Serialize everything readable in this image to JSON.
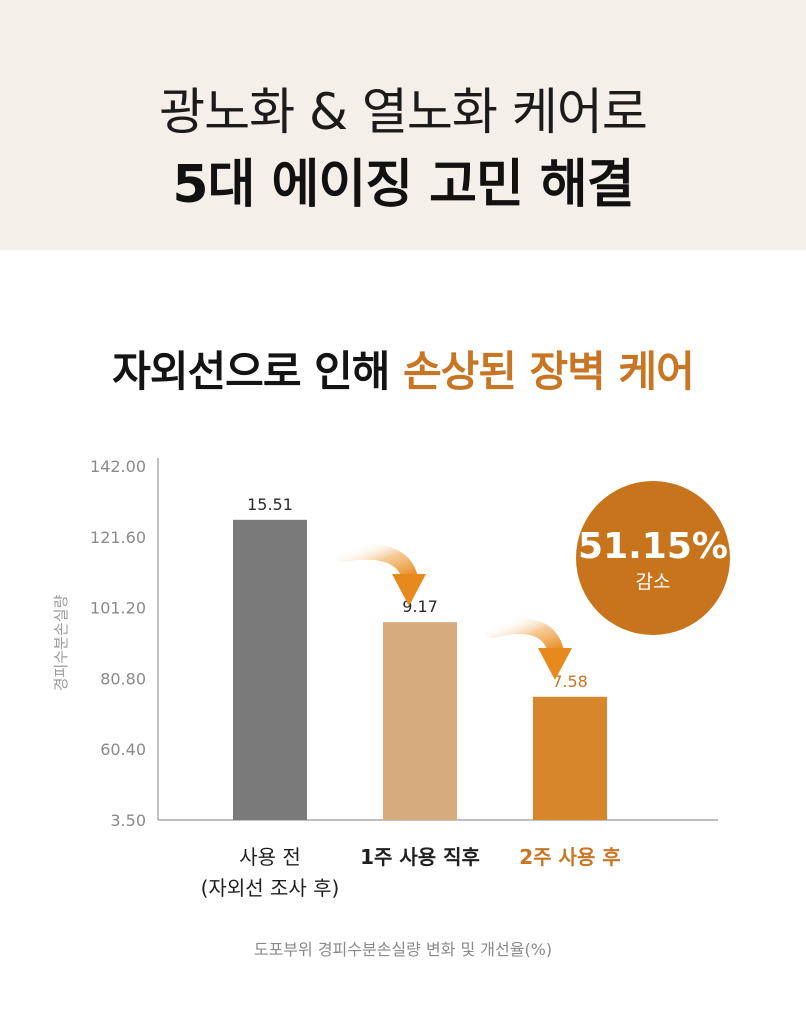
{
  "header": {
    "line1": "광노화 & 열노화 케어로",
    "line2": "5대 에이징 고민 해결"
  },
  "section": {
    "title_black": "자외선으로 인해 ",
    "title_accent": "손상된 장벽 케어"
  },
  "badge": {
    "value": "51.15%",
    "label": "감소",
    "color": "#c8741c"
  },
  "colors": {
    "accent": "#c87624",
    "bar_before": "#7a7a7a",
    "bar_week1": "#d6ab7e",
    "bar_week2": "#d8862c",
    "arrow": "#e8891d"
  },
  "chart_data": {
    "type": "bar",
    "ylabel": "경피수분손실량",
    "yticks": [
      "142.00",
      "121.60",
      "101.20",
      "80.80",
      "60.40",
      "3.50"
    ],
    "categories": [
      {
        "line1": "사용 전",
        "line2": "(자외선 조사 후)",
        "style": "normal"
      },
      {
        "line1": "1주 사용 직후",
        "line2": "",
        "style": "bold"
      },
      {
        "line1": "2주 사용 후",
        "line2": "",
        "style": "accent"
      }
    ],
    "values": [
      15.51,
      9.17,
      7.58
    ],
    "value_labels": [
      "15.51",
      "9.17",
      "7.58"
    ],
    "bar_heights_in_axis_units": [
      126.5,
      97.0,
      75.5
    ],
    "grid": false
  },
  "footnote": "도포부위 경피수분손실량 변화 및 개선율(%)"
}
